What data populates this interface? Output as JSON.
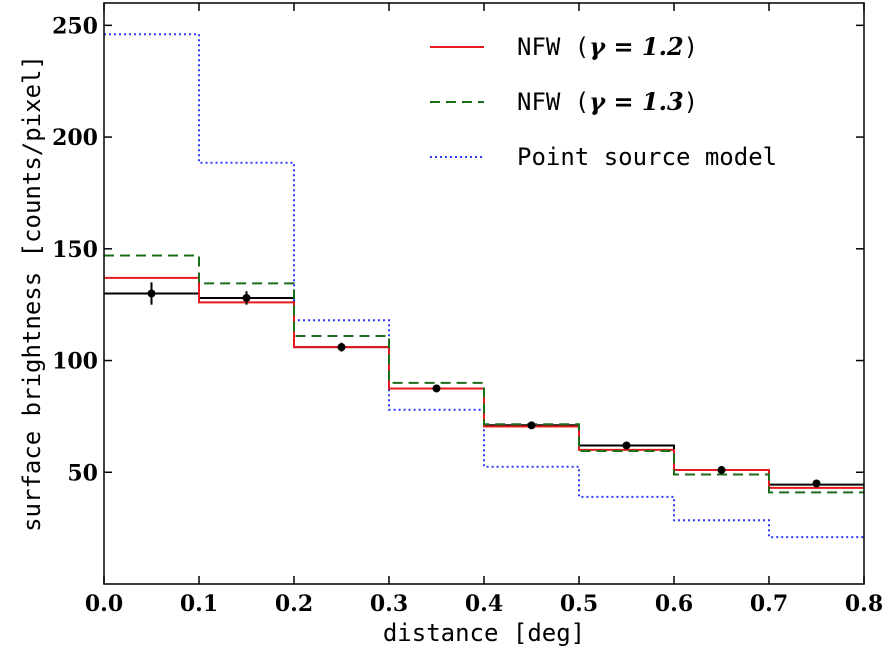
{
  "chart_data": {
    "type": "line",
    "xlabel": "distance [deg]",
    "ylabel": "surface brightness [counts/pixel]",
    "xlim": [
      0.0,
      0.8
    ],
    "ylim": [
      0,
      260
    ],
    "xticks": [
      0.0,
      0.1,
      0.2,
      0.3,
      0.4,
      0.5,
      0.6,
      0.7,
      0.8
    ],
    "xtick_labels": [
      "0.0",
      "0.1",
      "0.2",
      "0.3",
      "0.4",
      "0.5",
      "0.6",
      "0.7",
      "0.8"
    ],
    "yticks": [
      50,
      100,
      150,
      200,
      250
    ],
    "ytick_labels": [
      "50",
      "100",
      "150",
      "200",
      "250"
    ],
    "grid": false,
    "legend_position": "top-right",
    "bin_edges": [
      0.0,
      0.1,
      0.2,
      0.3,
      0.4,
      0.5,
      0.6,
      0.7,
      0.8
    ],
    "data_step": {
      "color": "#000000",
      "values": [
        130,
        128,
        106,
        87.5,
        71,
        62,
        51,
        44.5
      ]
    },
    "data_points": {
      "x": [
        0.05,
        0.15,
        0.25,
        0.35,
        0.45,
        0.55,
        0.65,
        0.75
      ],
      "y": [
        130,
        128,
        106,
        87.5,
        71,
        62,
        51,
        45
      ],
      "yerr": [
        5,
        3,
        2,
        1.5,
        1,
        1,
        1,
        1
      ],
      "color": "#000000"
    },
    "series": [
      {
        "name": "NFW (γ = 1.2)",
        "name_prefix": "NFW (",
        "name_math": "γ = 1.2",
        "name_suffix": ")",
        "color": "#e41a1c",
        "style": "solid",
        "values": [
          137,
          126,
          106,
          87.5,
          70.5,
          60,
          51,
          43
        ]
      },
      {
        "name": "NFW (γ = 1.3)",
        "name_prefix": "NFW (",
        "name_math": "γ = 1.3",
        "name_suffix": ")",
        "color": "#1a6e1a",
        "style": "dashed",
        "values": [
          147,
          134.5,
          111,
          90,
          71.5,
          59.5,
          49,
          41
        ]
      },
      {
        "name": "Point source model",
        "name_prefix": "Point source model",
        "name_math": "",
        "name_suffix": "",
        "color": "#2a3bff",
        "style": "dotted",
        "values": [
          246,
          188.5,
          118,
          78,
          52.5,
          39,
          28.5,
          21
        ]
      }
    ]
  }
}
